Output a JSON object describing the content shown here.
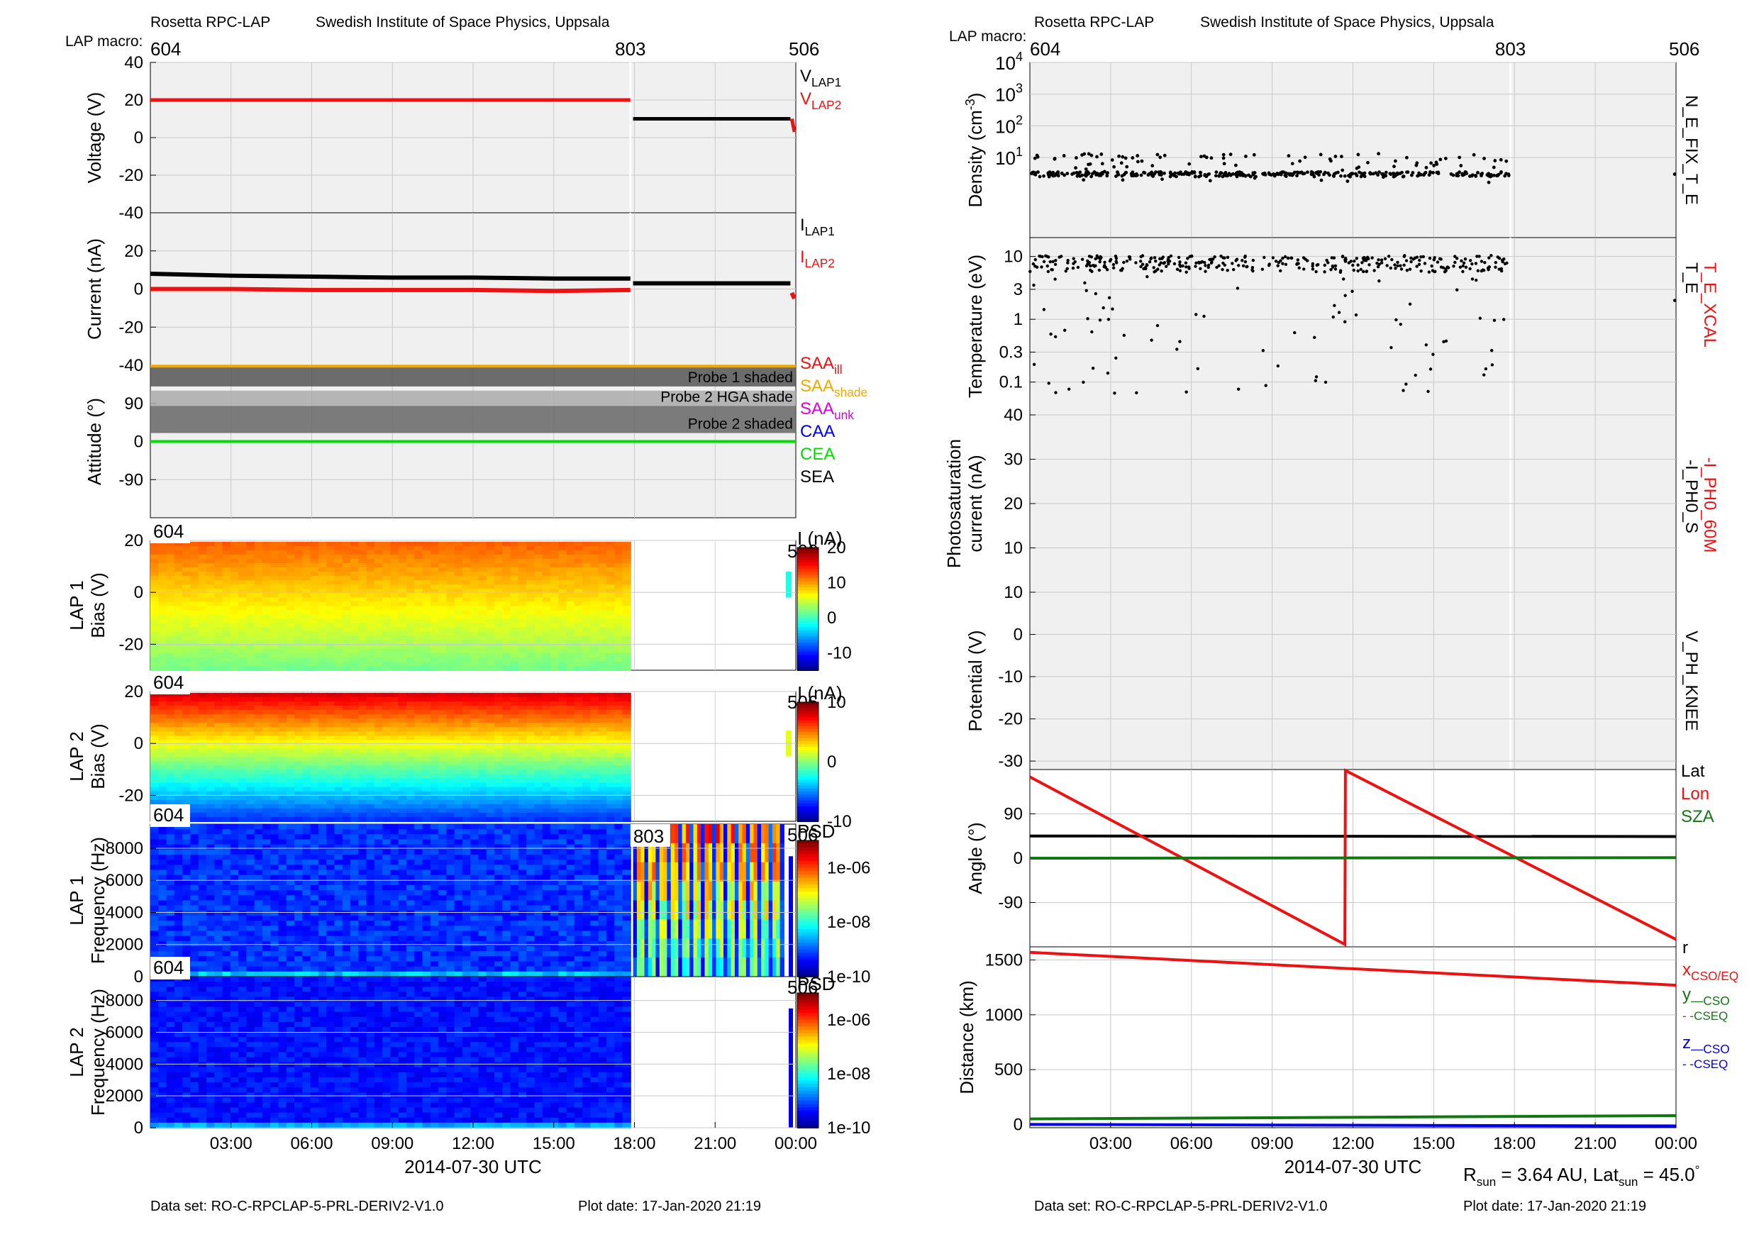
{
  "header": {
    "instrument": "Rosetta RPC-LAP",
    "institute": "Swedish Institute of Space Physics, Uppsala",
    "macro_label": "LAP macro:"
  },
  "footer": {
    "dataset": "Data set: RO-C-RPCLAP-5-PRL-DERIV2-V1.0",
    "plot_date": "Plot date: 17-Jan-2020 21:19",
    "rsun_label": "R",
    "rsun_sub": "sun",
    "rsun_value": " = 3.64 AU, Lat",
    "lat_sub": "sun",
    "lat_value": " = 45.0",
    "degree": "°"
  },
  "time_axis": {
    "ticks": [
      "03:00",
      "06:00",
      "09:00",
      "12:00",
      "15:00",
      "18:00",
      "21:00",
      "00:00"
    ],
    "tick_hours": [
      3,
      6,
      9,
      12,
      15,
      18,
      21,
      24
    ],
    "label": "2014-07-30 UTC",
    "range_hours": [
      0,
      24
    ]
  },
  "macros": {
    "left": [
      {
        "label": "604",
        "hour": 0
      },
      {
        "label": "803",
        "hour": 17.85
      },
      {
        "label": "506",
        "hour": 24
      }
    ],
    "right": [
      {
        "label": "604",
        "hour": 0
      },
      {
        "label": "803",
        "hour": 17.85
      },
      {
        "label": "506",
        "hour": 24
      }
    ]
  },
  "colors": {
    "red": "#ee1111",
    "black": "#000000",
    "orange": "#eeaa00",
    "magenta": "#dd00dd",
    "blue": "#0000ee",
    "green": "#00dd00",
    "darkgreen": "#117711",
    "gridbg": "#f0f0f0"
  },
  "chart_data": [
    {
      "type": "line",
      "title": "",
      "ylabel": "Voltage (V)",
      "ylim": [
        -40,
        40
      ],
      "yticks": [
        "40",
        "20",
        "0",
        "-20",
        "-40"
      ],
      "yticks_val": [
        40,
        20,
        0,
        -20,
        -40
      ],
      "legend": [
        {
          "name": "V",
          "sub": "LAP1",
          "color": "#000000"
        },
        {
          "name": "V",
          "sub": "LAP2",
          "color": "#ee1111"
        }
      ],
      "series": [
        {
          "name": "V_LAP2",
          "color": "#ee1111",
          "x": [
            0,
            17.85
          ],
          "y": [
            20,
            20
          ]
        },
        {
          "name": "V_LAP1",
          "color": "#000000",
          "x": [
            17.95,
            23.8
          ],
          "y": [
            10,
            10
          ]
        },
        {
          "name": "V_LAP2 (506)",
          "color": "#ee1111",
          "x": [
            23.85,
            23.95
          ],
          "y": [
            10,
            3
          ]
        }
      ]
    },
    {
      "type": "line",
      "ylabel": "Current (nA)",
      "ylim": [
        -40,
        40
      ],
      "yticks": [
        "20",
        "0",
        "-20",
        "-40"
      ],
      "yticks_val": [
        20,
        0,
        -20,
        -40
      ],
      "legend": [
        {
          "name": "I",
          "sub": "LAP1",
          "color": "#000000"
        },
        {
          "name": "I",
          "sub": "LAP2",
          "color": "#ee1111"
        }
      ],
      "series": [
        {
          "name": "I_LAP1",
          "color": "#000000",
          "x": [
            0,
            3,
            6,
            9,
            12,
            15,
            17.85
          ],
          "y": [
            8,
            7,
            6.5,
            6,
            6,
            5.5,
            5.5
          ]
        },
        {
          "name": "I_LAP2",
          "color": "#ee1111",
          "x": [
            0,
            3,
            6,
            9,
            12,
            15,
            17.85
          ],
          "y": [
            0,
            0,
            -0.5,
            -0.5,
            -0.5,
            -1,
            -0.5
          ]
        },
        {
          "name": "I_LAP1 (803)",
          "color": "#000000",
          "x": [
            17.95,
            23.8
          ],
          "y": [
            3,
            3
          ]
        },
        {
          "name": "I_LAP2 (506)",
          "color": "#ee1111",
          "x": [
            23.85,
            23.95
          ],
          "y": [
            -2,
            -5
          ]
        }
      ]
    },
    {
      "type": "area",
      "ylabel": "Attitude (°)",
      "ylim": [
        -180,
        180
      ],
      "yticks": [
        "90",
        "0",
        "-90"
      ],
      "yticks_val": [
        90,
        0,
        -90
      ],
      "bands": [
        {
          "label": "Probe 1 shaded",
          "y0": 130,
          "y1": 180,
          "color": "#555555"
        },
        {
          "label": "Probe 2 HGA shade",
          "y0": 84,
          "y1": 120,
          "color": "#aaaaaa"
        },
        {
          "label": "Probe 2 shaded",
          "y0": 20,
          "y1": 84,
          "color": "#666666"
        }
      ],
      "lines": [
        {
          "name": "SAA_shade",
          "color": "#eeaa00",
          "y": 178
        },
        {
          "name": "CEA",
          "color": "#00dd00",
          "y": 0
        }
      ],
      "legend": [
        {
          "name": "SAA",
          "sub": "ill",
          "color": "#ee1111"
        },
        {
          "name": "SAA",
          "sub": "shade",
          "color": "#eeaa00"
        },
        {
          "name": "SAA",
          "sub": "unk",
          "color": "#dd00dd"
        },
        {
          "name": "CAA",
          "sub": "",
          "color": "#0000ee"
        },
        {
          "name": "CEA",
          "sub": "",
          "color": "#00dd00"
        },
        {
          "name": "SEA",
          "sub": "",
          "color": "#000000"
        }
      ]
    },
    {
      "type": "heatmap",
      "ylabel1": "LAP 1",
      "ylabel2": "Bias (V)",
      "ylim": [
        -30,
        20
      ],
      "yticks": [
        "20",
        "0",
        "-20"
      ],
      "yticks_val": [
        20,
        0,
        -20
      ],
      "macro_left": "604",
      "macro_right": "506",
      "cbar_label": "I (nA)",
      "cbar_ticks": [
        "20",
        "10",
        "0",
        "-10"
      ],
      "cbar_ticks_val": [
        20,
        10,
        0,
        -10
      ],
      "cbar_range": [
        -15,
        20
      ]
    },
    {
      "type": "heatmap",
      "ylabel1": "LAP 2",
      "ylabel2": "Bias (V)",
      "ylim": [
        -30,
        20
      ],
      "yticks": [
        "20",
        "0",
        "-20"
      ],
      "yticks_val": [
        20,
        0,
        -20
      ],
      "macro_left": "604",
      "macro_right": "506",
      "cbar_label": "I (nA)",
      "cbar_ticks": [
        "10",
        "0",
        "-10"
      ],
      "cbar_ticks_val": [
        10,
        0,
        -10
      ],
      "cbar_range": [
        -10,
        10
      ]
    },
    {
      "type": "heatmap",
      "ylabel1": "LAP 1",
      "ylabel2": "Frequency (Hz)",
      "ylim": [
        0,
        9500
      ],
      "yticks": [
        "8000",
        "6000",
        "4000",
        "2000",
        "0"
      ],
      "yticks_val": [
        8000,
        6000,
        4000,
        2000,
        0
      ],
      "macro_left": "604",
      "macro_mid": "803",
      "macro_right": "506",
      "cbar_label": "PSD",
      "cbar_ticks": [
        "1e-06",
        "1e-08",
        "1e-10"
      ],
      "cbar_ticks_val": [
        -6,
        -8,
        -10
      ],
      "cbar_range": [
        -10,
        -5
      ]
    },
    {
      "type": "heatmap",
      "ylabel1": "LAP 2",
      "ylabel2": "Frequency (Hz)",
      "ylim": [
        0,
        9500
      ],
      "yticks": [
        "8000",
        "6000",
        "4000",
        "2000",
        "0"
      ],
      "yticks_val": [
        8000,
        6000,
        4000,
        2000,
        0
      ],
      "macro_left": "604",
      "macro_right": "506",
      "cbar_label": "PSD",
      "cbar_ticks": [
        "1e-06",
        "1e-08",
        "1e-10"
      ],
      "cbar_ticks_val": [
        -6,
        -8,
        -10
      ],
      "cbar_range": [
        -10,
        -5
      ]
    },
    {
      "type": "scatter",
      "ylabel": "Density (cm",
      "ylabel_sup": "-3",
      "ylabel_end": ")",
      "log": true,
      "ylim": [
        0.03,
        10000
      ],
      "yticks": [
        {
          "base": "10",
          "exp": "4",
          "v": 10000
        },
        {
          "base": "10",
          "exp": "3",
          "v": 1000
        },
        {
          "base": "10",
          "exp": "2",
          "v": 100
        },
        {
          "base": "10",
          "exp": "1",
          "v": 10
        }
      ],
      "side_label": "N_E_FIX_T_E",
      "typical": 3,
      "range": [
        17.85
      ]
    },
    {
      "type": "scatter",
      "ylabel": "Temperature (eV)",
      "log": true,
      "ylim": [
        0.03,
        20
      ],
      "yticks": [
        "10",
        "3",
        "1",
        "0.3",
        "0.1"
      ],
      "yticks_val": [
        10,
        3,
        1,
        0.3,
        0.1
      ],
      "side_label": "T_E",
      "side_label2": "T_E_XCAL",
      "typical": 8
    },
    {
      "type": "line",
      "ylabel1": "Photosaturation",
      "ylabel2": "current (nA)",
      "ylim": [
        0,
        40
      ],
      "yticks": [
        "40",
        "30",
        "20",
        "10"
      ],
      "yticks_val": [
        40,
        30,
        20,
        10
      ],
      "side_label": "-I_PH0_S",
      "side_label2": "-I_PH0_60M"
    },
    {
      "type": "line",
      "ylabel": "Potential (V)",
      "ylim": [
        -32,
        10
      ],
      "yticks": [
        "10",
        "0",
        "-10",
        "-20",
        "-30"
      ],
      "yticks_val": [
        10,
        0,
        -10,
        -20,
        -30
      ],
      "side_label": "V_PH_KNEE"
    },
    {
      "type": "line",
      "ylabel": "Angle (°)",
      "ylim": [
        -180,
        180
      ],
      "yticks": [
        "90",
        "0",
        "-90"
      ],
      "yticks_val": [
        90,
        0,
        -90
      ],
      "legend": [
        {
          "name": "Lat",
          "color": "#000000"
        },
        {
          "name": "Lon",
          "color": "#ee1111"
        },
        {
          "name": "SZA",
          "color": "#117711"
        }
      ],
      "series": [
        {
          "name": "Lat",
          "color": "#000000",
          "x": [
            0,
            24
          ],
          "y": [
            45,
            44
          ]
        },
        {
          "name": "Lon",
          "color": "#ee1111",
          "x": [
            0,
            11.7,
            11.72,
            24
          ],
          "y": [
            165,
            -175,
            178,
            -165
          ]
        },
        {
          "name": "SZA",
          "color": "#117711",
          "x": [
            0,
            24
          ],
          "y": [
            0,
            1
          ]
        }
      ]
    },
    {
      "type": "line",
      "ylabel": "Distance (km)",
      "ylim": [
        -30,
        1620
      ],
      "yticks": [
        "1500",
        "1000",
        "500",
        "0"
      ],
      "yticks_val": [
        1500,
        1000,
        500,
        0
      ],
      "legend": [
        {
          "name": "r",
          "sub": "",
          "color": "#000000"
        },
        {
          "name": "x",
          "sub": "CSO/EQ",
          "color": "#ee1111"
        },
        {
          "name": "y",
          "sub": "—CSO",
          "color": "#117711"
        },
        {
          "name": "",
          "sub": "- -CSEQ",
          "color": "#117711"
        },
        {
          "name": "z",
          "sub": "—CSO",
          "color": "#0000ee"
        },
        {
          "name": "",
          "sub": "- -CSEQ",
          "color": "#0000ee"
        }
      ],
      "series": [
        {
          "name": "x",
          "color": "#ee1111",
          "x": [
            0,
            24
          ],
          "y": [
            1570,
            1270
          ]
        },
        {
          "name": "y",
          "color": "#117711",
          "x": [
            0,
            24
          ],
          "y": [
            50,
            80
          ]
        },
        {
          "name": "z",
          "color": "#0000ee",
          "x": [
            0,
            24
          ],
          "y": [
            0,
            -15
          ]
        }
      ]
    }
  ]
}
